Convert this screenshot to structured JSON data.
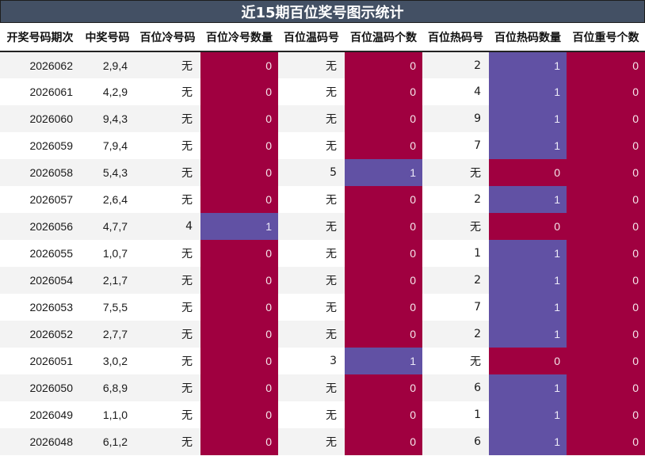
{
  "title": "近15期百位奖号图示统计",
  "colors": {
    "title_bg": "#435064",
    "zero_cell": "#a00040",
    "one_cell": "#6151a4",
    "row_alt": "#f3f3f3"
  },
  "columns": [
    "开奖号码期次",
    "中奖号码",
    "百位冷号码",
    "百位冷号数量",
    "百位温码号",
    "百位温码个数",
    "百位热码号",
    "百位热码数量",
    "百位重号个数"
  ],
  "rows": [
    {
      "period": "2026062",
      "numbers": "2,9,4",
      "cold_code": "无",
      "cold_count": "0",
      "warm_code": "无",
      "warm_count": "0",
      "hot_code": "2",
      "hot_count": "1",
      "repeat_count": "0"
    },
    {
      "period": "2026061",
      "numbers": "4,2,9",
      "cold_code": "无",
      "cold_count": "0",
      "warm_code": "无",
      "warm_count": "0",
      "hot_code": "4",
      "hot_count": "1",
      "repeat_count": "0"
    },
    {
      "period": "2026060",
      "numbers": "9,4,3",
      "cold_code": "无",
      "cold_count": "0",
      "warm_code": "无",
      "warm_count": "0",
      "hot_code": "9",
      "hot_count": "1",
      "repeat_count": "0"
    },
    {
      "period": "2026059",
      "numbers": "7,9,4",
      "cold_code": "无",
      "cold_count": "0",
      "warm_code": "无",
      "warm_count": "0",
      "hot_code": "7",
      "hot_count": "1",
      "repeat_count": "0"
    },
    {
      "period": "2026058",
      "numbers": "5,4,3",
      "cold_code": "无",
      "cold_count": "0",
      "warm_code": "5",
      "warm_count": "1",
      "hot_code": "无",
      "hot_count": "0",
      "repeat_count": "0"
    },
    {
      "period": "2026057",
      "numbers": "2,6,4",
      "cold_code": "无",
      "cold_count": "0",
      "warm_code": "无",
      "warm_count": "0",
      "hot_code": "2",
      "hot_count": "1",
      "repeat_count": "0"
    },
    {
      "period": "2026056",
      "numbers": "4,7,7",
      "cold_code": "4",
      "cold_count": "1",
      "warm_code": "无",
      "warm_count": "0",
      "hot_code": "无",
      "hot_count": "0",
      "repeat_count": "0"
    },
    {
      "period": "2026055",
      "numbers": "1,0,7",
      "cold_code": "无",
      "cold_count": "0",
      "warm_code": "无",
      "warm_count": "0",
      "hot_code": "1",
      "hot_count": "1",
      "repeat_count": "0"
    },
    {
      "period": "2026054",
      "numbers": "2,1,7",
      "cold_code": "无",
      "cold_count": "0",
      "warm_code": "无",
      "warm_count": "0",
      "hot_code": "2",
      "hot_count": "1",
      "repeat_count": "0"
    },
    {
      "period": "2026053",
      "numbers": "7,5,5",
      "cold_code": "无",
      "cold_count": "0",
      "warm_code": "无",
      "warm_count": "0",
      "hot_code": "7",
      "hot_count": "1",
      "repeat_count": "0"
    },
    {
      "period": "2026052",
      "numbers": "2,7,7",
      "cold_code": "无",
      "cold_count": "0",
      "warm_code": "无",
      "warm_count": "0",
      "hot_code": "2",
      "hot_count": "1",
      "repeat_count": "0"
    },
    {
      "period": "2026051",
      "numbers": "3,0,2",
      "cold_code": "无",
      "cold_count": "0",
      "warm_code": "3",
      "warm_count": "1",
      "hot_code": "无",
      "hot_count": "0",
      "repeat_count": "0"
    },
    {
      "period": "2026050",
      "numbers": "6,8,9",
      "cold_code": "无",
      "cold_count": "0",
      "warm_code": "无",
      "warm_count": "0",
      "hot_code": "6",
      "hot_count": "1",
      "repeat_count": "0"
    },
    {
      "period": "2026049",
      "numbers": "1,1,0",
      "cold_code": "无",
      "cold_count": "0",
      "warm_code": "无",
      "warm_count": "0",
      "hot_code": "1",
      "hot_count": "1",
      "repeat_count": "0"
    },
    {
      "period": "2026048",
      "numbers": "6,1,2",
      "cold_code": "无",
      "cold_count": "0",
      "warm_code": "无",
      "warm_count": "0",
      "hot_code": "6",
      "hot_count": "1",
      "repeat_count": "0"
    }
  ]
}
